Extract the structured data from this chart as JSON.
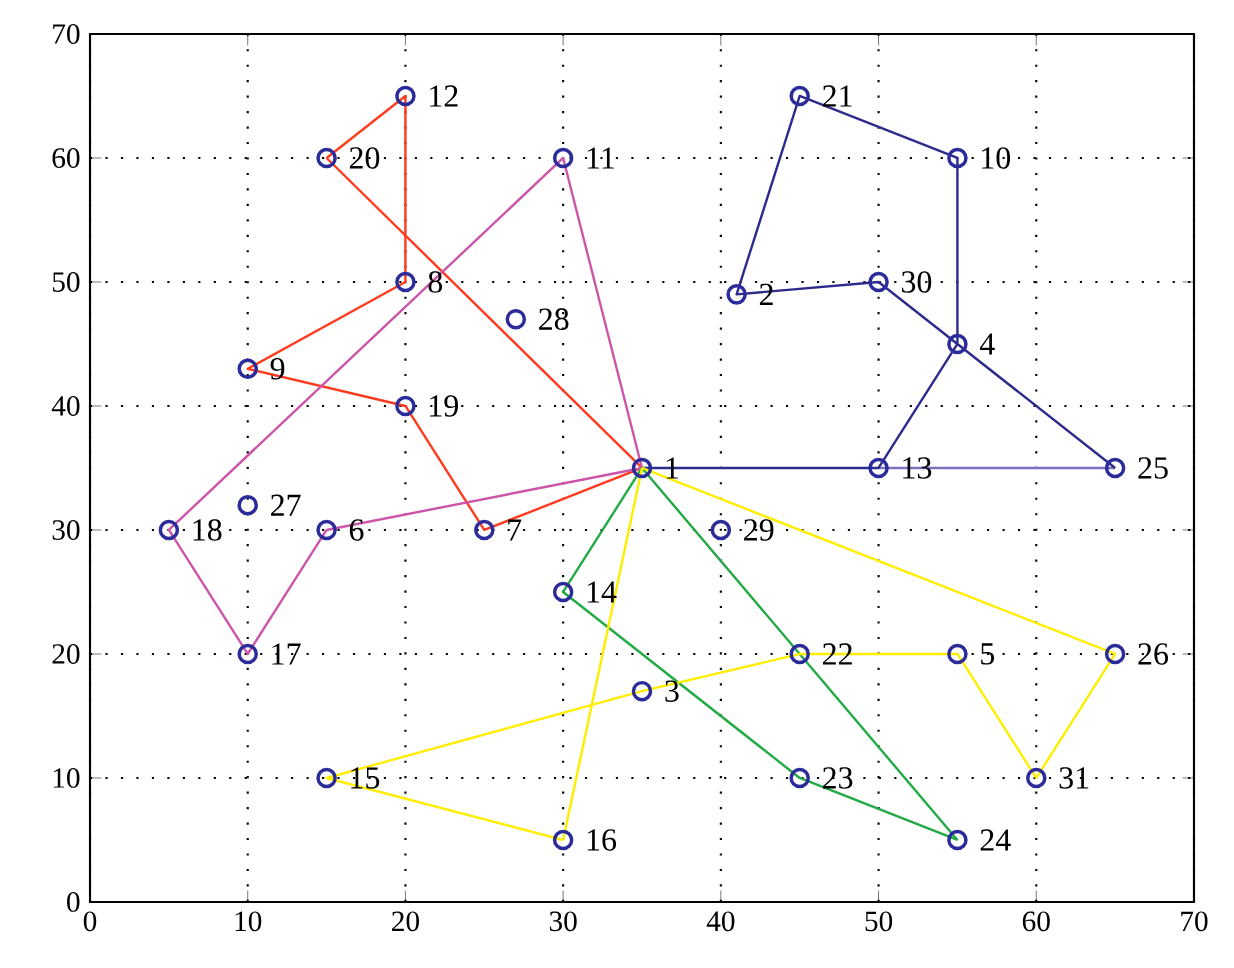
{
  "chart_data": {
    "type": "scatter",
    "xlim": [
      0,
      70
    ],
    "ylim": [
      0,
      70
    ],
    "xticks": [
      0,
      10,
      20,
      30,
      40,
      50,
      60,
      70
    ],
    "yticks": [
      0,
      10,
      20,
      30,
      40,
      50,
      60,
      70
    ],
    "grid": true,
    "series": [
      {
        "type": "line",
        "color": "#ff3b1f",
        "marker": "none",
        "x": [
          35,
          25,
          20,
          10,
          20,
          20,
          15
        ],
        "values": [
          35,
          30,
          40,
          43,
          50,
          65,
          60
        ]
      },
      {
        "type": "line",
        "color": "#ff3b1f",
        "marker": "none",
        "x": [
          15,
          35
        ],
        "values": [
          60,
          35
        ]
      },
      {
        "type": "line",
        "color": "#cc55aa",
        "marker": "none",
        "x": [
          35,
          30,
          5,
          10,
          15
        ],
        "values": [
          35,
          60,
          30,
          20,
          30
        ]
      },
      {
        "type": "line",
        "color": "#cc55aa",
        "marker": "none",
        "x": [
          15,
          35
        ],
        "values": [
          30,
          35
        ]
      },
      {
        "type": "line",
        "color": "#8070c0",
        "marker": "none",
        "x": [
          65,
          50
        ],
        "values": [
          35,
          35
        ]
      },
      {
        "type": "line",
        "color": "#2e2a8c",
        "marker": "none",
        "x": [
          35,
          50,
          55,
          55,
          45,
          41,
          50,
          55,
          65
        ],
        "values": [
          35,
          35,
          45,
          60,
          65,
          49,
          50,
          45,
          35
        ]
      },
      {
        "type": "line",
        "color": "#22aa44",
        "marker": "none",
        "x": [
          35,
          30,
          45,
          55
        ],
        "values": [
          35,
          25,
          10,
          5
        ]
      },
      {
        "type": "line",
        "color": "#22aa44",
        "marker": "none",
        "x": [
          55,
          45,
          35
        ],
        "values": [
          5,
          20,
          35
        ]
      },
      {
        "type": "line",
        "color": "#ffee00",
        "marker": "none",
        "x": [
          35,
          65,
          60,
          55,
          45,
          35,
          15,
          30
        ],
        "values": [
          35,
          20,
          10,
          20,
          20,
          17,
          10,
          5
        ]
      },
      {
        "type": "line",
        "color": "#ffee00",
        "marker": "none",
        "x": [
          30,
          35
        ],
        "values": [
          5,
          35
        ]
      },
      {
        "color": "#2b2b9a",
        "marker": "circle",
        "x": [
          35,
          41,
          35,
          55,
          55,
          15,
          25,
          20,
          10,
          55,
          30,
          20,
          50,
          30,
          15,
          30,
          10,
          5,
          20,
          15,
          45,
          45,
          45,
          55,
          65,
          65,
          10,
          27,
          40,
          50,
          60
        ],
        "values": [
          35,
          49,
          17,
          45,
          20,
          30,
          30,
          50,
          43,
          60,
          60,
          65,
          35,
          25,
          10,
          5,
          20,
          30,
          40,
          60,
          65,
          20,
          10,
          5,
          35,
          20,
          32,
          47,
          30,
          50,
          10
        ]
      }
    ],
    "annotations": [
      {
        "text": "1",
        "x": 35,
        "y": 35
      },
      {
        "text": "2",
        "x": 41,
        "y": 49
      },
      {
        "text": "3",
        "x": 35,
        "y": 17
      },
      {
        "text": "4",
        "x": 55,
        "y": 45
      },
      {
        "text": "5",
        "x": 55,
        "y": 20
      },
      {
        "text": "6",
        "x": 15,
        "y": 30
      },
      {
        "text": "7",
        "x": 25,
        "y": 30
      },
      {
        "text": "8",
        "x": 20,
        "y": 50
      },
      {
        "text": "9",
        "x": 10,
        "y": 43
      },
      {
        "text": "10",
        "x": 55,
        "y": 60
      },
      {
        "text": "11",
        "x": 30,
        "y": 60
      },
      {
        "text": "12",
        "x": 20,
        "y": 65
      },
      {
        "text": "13",
        "x": 50,
        "y": 35
      },
      {
        "text": "14",
        "x": 30,
        "y": 25
      },
      {
        "text": "15",
        "x": 15,
        "y": 10
      },
      {
        "text": "16",
        "x": 30,
        "y": 5
      },
      {
        "text": "17",
        "x": 10,
        "y": 20
      },
      {
        "text": "18",
        "x": 5,
        "y": 30
      },
      {
        "text": "19",
        "x": 20,
        "y": 40
      },
      {
        "text": "20",
        "x": 15,
        "y": 60
      },
      {
        "text": "21",
        "x": 45,
        "y": 65
      },
      {
        "text": "22",
        "x": 45,
        "y": 20
      },
      {
        "text": "23",
        "x": 45,
        "y": 10
      },
      {
        "text": "24",
        "x": 55,
        "y": 5
      },
      {
        "text": "25",
        "x": 65,
        "y": 35
      },
      {
        "text": "26",
        "x": 65,
        "y": 20
      },
      {
        "text": "27",
        "x": 10,
        "y": 32
      },
      {
        "text": "28",
        "x": 27,
        "y": 47
      },
      {
        "text": "29",
        "x": 40,
        "y": 30
      },
      {
        "text": "30",
        "x": 50,
        "y": 50
      },
      {
        "text": "31",
        "x": 60,
        "y": 10
      }
    ]
  }
}
